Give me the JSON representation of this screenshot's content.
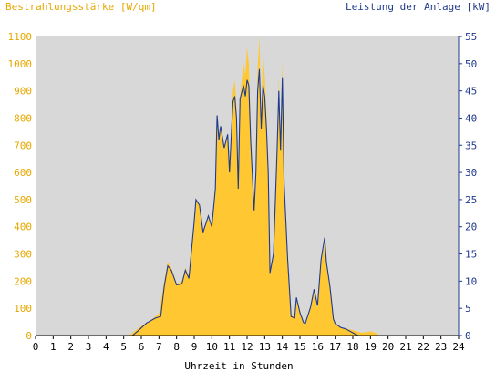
{
  "chart_data": {
    "type": "area",
    "left_axis_title": "Bestrahlungsstärke [W/qm]",
    "right_axis_title": "Leistung der Anlage [kW]",
    "xlabel": "Uhrzeit in Stunden",
    "xlim": [
      0,
      24
    ],
    "x_ticks": [
      "0",
      "1",
      "2",
      "3",
      "4",
      "5",
      "6",
      "7",
      "8",
      "9",
      "10",
      "11",
      "12",
      "13",
      "14",
      "15",
      "16",
      "17",
      "18",
      "19",
      "20",
      "21",
      "22",
      "23",
      "24"
    ],
    "ylim_left": [
      0,
      1100
    ],
    "y_ticks_left": [
      "0",
      "100",
      "200",
      "300",
      "400",
      "500",
      "600",
      "700",
      "800",
      "900",
      "1000",
      "1100"
    ],
    "ylim_right": [
      0,
      55
    ],
    "y_ticks_right": [
      "0",
      "5",
      "10",
      "15",
      "20",
      "25",
      "30",
      "35",
      "40",
      "45",
      "50",
      "55"
    ],
    "grid": false,
    "colors": {
      "plot_background": "#d8d8d8",
      "irradiance_fill": "#ffc832",
      "power_line": "#1f3a8a",
      "left_axis_text": "#e6a800",
      "right_axis_text": "#1f3a8a",
      "axis_text": "#000000"
    },
    "series": [
      {
        "name": "Bestrahlungsstärke [W/qm]",
        "axis": "left",
        "kind": "area",
        "points": [
          [
            5.3,
            0
          ],
          [
            5.6,
            15
          ],
          [
            6.0,
            35
          ],
          [
            6.5,
            55
          ],
          [
            7.0,
            80
          ],
          [
            7.3,
            200
          ],
          [
            7.5,
            270
          ],
          [
            7.7,
            250
          ],
          [
            8.0,
            190
          ],
          [
            8.3,
            200
          ],
          [
            8.5,
            250
          ],
          [
            8.7,
            220
          ],
          [
            9.0,
            420
          ],
          [
            9.1,
            500
          ],
          [
            9.3,
            480
          ],
          [
            9.5,
            390
          ],
          [
            9.8,
            430
          ],
          [
            10.0,
            400
          ],
          [
            10.2,
            540
          ],
          [
            10.3,
            800
          ],
          [
            10.4,
            730
          ],
          [
            10.5,
            760
          ],
          [
            10.7,
            680
          ],
          [
            10.9,
            740
          ],
          [
            11.0,
            600
          ],
          [
            11.2,
            900
          ],
          [
            11.3,
            940
          ],
          [
            11.4,
            840
          ],
          [
            11.5,
            560
          ],
          [
            11.6,
            880
          ],
          [
            11.8,
            1000
          ],
          [
            11.9,
            960
          ],
          [
            12.0,
            1060
          ],
          [
            12.1,
            1000
          ],
          [
            12.2,
            770
          ],
          [
            12.4,
            450
          ],
          [
            12.5,
            600
          ],
          [
            12.6,
            980
          ],
          [
            12.7,
            1100
          ],
          [
            12.8,
            780
          ],
          [
            12.9,
            1050
          ],
          [
            13.0,
            960
          ],
          [
            13.1,
            820
          ],
          [
            13.2,
            600
          ],
          [
            13.3,
            220
          ],
          [
            13.5,
            300
          ],
          [
            13.7,
            700
          ],
          [
            13.8,
            950
          ],
          [
            13.9,
            700
          ],
          [
            14.0,
            1010
          ],
          [
            14.1,
            560
          ],
          [
            14.3,
            300
          ],
          [
            14.5,
            80
          ],
          [
            14.7,
            60
          ],
          [
            14.8,
            130
          ],
          [
            15.0,
            80
          ],
          [
            15.2,
            45
          ],
          [
            15.3,
            40
          ],
          [
            15.6,
            100
          ],
          [
            15.8,
            170
          ],
          [
            16.0,
            100
          ],
          [
            16.2,
            270
          ],
          [
            16.4,
            340
          ],
          [
            16.5,
            260
          ],
          [
            16.7,
            180
          ],
          [
            16.9,
            60
          ],
          [
            17.0,
            45
          ],
          [
            17.3,
            30
          ],
          [
            17.6,
            25
          ],
          [
            18.0,
            20
          ],
          [
            18.5,
            10
          ],
          [
            19.0,
            15
          ],
          [
            19.3,
            10
          ],
          [
            19.5,
            0
          ]
        ]
      },
      {
        "name": "Leistung der Anlage [kW]",
        "axis": "right",
        "kind": "line",
        "points": [
          [
            0,
            0
          ],
          [
            5.5,
            0
          ],
          [
            5.8,
            0.8
          ],
          [
            6.3,
            2.3
          ],
          [
            6.8,
            3.2
          ],
          [
            7.1,
            3.5
          ],
          [
            7.3,
            9
          ],
          [
            7.5,
            12.8
          ],
          [
            7.7,
            12
          ],
          [
            8.0,
            9.3
          ],
          [
            8.3,
            9.5
          ],
          [
            8.5,
            12
          ],
          [
            8.7,
            10.5
          ],
          [
            9.0,
            21
          ],
          [
            9.1,
            25
          ],
          [
            9.3,
            24
          ],
          [
            9.5,
            19
          ],
          [
            9.8,
            22
          ],
          [
            10.0,
            20
          ],
          [
            10.2,
            27
          ],
          [
            10.3,
            40.5
          ],
          [
            10.4,
            36
          ],
          [
            10.5,
            38.5
          ],
          [
            10.7,
            34.5
          ],
          [
            10.9,
            37
          ],
          [
            11.0,
            30
          ],
          [
            11.2,
            43
          ],
          [
            11.3,
            44
          ],
          [
            11.4,
            40
          ],
          [
            11.5,
            27
          ],
          [
            11.6,
            43.5
          ],
          [
            11.8,
            46
          ],
          [
            11.9,
            44
          ],
          [
            12.0,
            47
          ],
          [
            12.1,
            46
          ],
          [
            12.2,
            36
          ],
          [
            12.4,
            23
          ],
          [
            12.5,
            30
          ],
          [
            12.6,
            45
          ],
          [
            12.7,
            49
          ],
          [
            12.8,
            38
          ],
          [
            12.9,
            46
          ],
          [
            13.0,
            44
          ],
          [
            13.1,
            38
          ],
          [
            13.2,
            30
          ],
          [
            13.3,
            11.5
          ],
          [
            13.5,
            15
          ],
          [
            13.7,
            34
          ],
          [
            13.8,
            45
          ],
          [
            13.9,
            34
          ],
          [
            14.0,
            47.5
          ],
          [
            14.1,
            28
          ],
          [
            14.3,
            14
          ],
          [
            14.5,
            3.5
          ],
          [
            14.7,
            3.2
          ],
          [
            14.8,
            7
          ],
          [
            15.0,
            4.2
          ],
          [
            15.2,
            2.4
          ],
          [
            15.3,
            2.2
          ],
          [
            15.6,
            5.2
          ],
          [
            15.8,
            8.5
          ],
          [
            16.0,
            5.5
          ],
          [
            16.2,
            14
          ],
          [
            16.4,
            18
          ],
          [
            16.5,
            13.5
          ],
          [
            16.7,
            9
          ],
          [
            16.9,
            3
          ],
          [
            17.0,
            2.2
          ],
          [
            17.3,
            1.5
          ],
          [
            17.6,
            1.2
          ],
          [
            18.0,
            0.5
          ],
          [
            18.3,
            0
          ],
          [
            24,
            0
          ]
        ]
      }
    ]
  }
}
